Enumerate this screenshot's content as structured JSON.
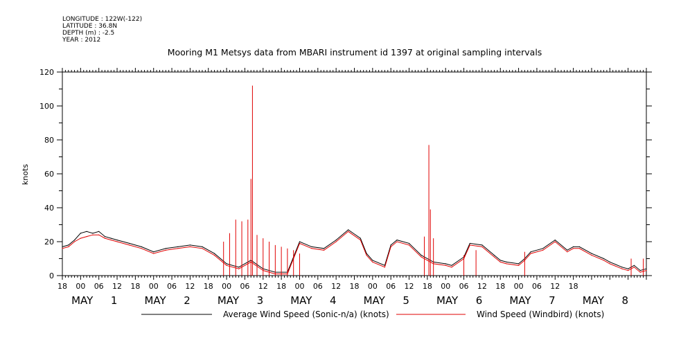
{
  "meta": {
    "longitude": "LONGITUDE : 122W(-122)",
    "latitude": "LATITUDE : 36.8N",
    "depth": "DEPTH (m) : -2.5",
    "year": "YEAR : 2012"
  },
  "colors": {
    "sonic": "#000000",
    "windbird": "#e00000",
    "axis": "#000000"
  },
  "chart_data": {
    "type": "line",
    "title": "Mooring M1 Metsys data from MBARI instrument id 1397 at original sampling intervals",
    "ylabel": "knots",
    "xlabel": "",
    "ylim": [
      0,
      120
    ],
    "xlim_hours": [
      18,
      210
    ],
    "yticks": [
      "0",
      "20",
      "40",
      "60",
      "80",
      "100",
      "120"
    ],
    "xticks": [
      "18",
      "00",
      "06",
      "12",
      "18",
      "00",
      "06",
      "12",
      "18",
      "00",
      "06",
      "12",
      "18",
      "00",
      "06",
      "12",
      "18",
      "00",
      "06",
      "12",
      "18",
      "00",
      "06",
      "12",
      "18",
      "00",
      "06",
      "12",
      "18"
    ],
    "day_labels": [
      {
        "month": "MAY",
        "day": "1"
      },
      {
        "month": "MAY",
        "day": "2"
      },
      {
        "month": "MAY",
        "day": "3"
      },
      {
        "month": "MAY",
        "day": "4"
      },
      {
        "month": "MAY",
        "day": "5"
      },
      {
        "month": "MAY",
        "day": "6"
      },
      {
        "month": "MAY",
        "day": "7"
      },
      {
        "month": "MAY",
        "day": "8"
      }
    ],
    "series": [
      {
        "name": "Average Wind Speed (Sonic-n/a) (knots)",
        "x_hours": [
          18,
          20,
          22,
          24,
          26,
          28,
          30,
          32,
          34,
          36,
          40,
          44,
          48,
          52,
          56,
          60,
          64,
          68,
          72,
          76,
          80,
          84,
          88,
          92,
          96,
          100,
          104,
          108,
          112,
          116,
          118,
          120,
          124,
          126,
          128,
          132,
          136,
          140,
          144,
          146,
          150,
          152,
          156,
          160,
          162,
          164,
          168,
          170,
          172,
          176,
          180,
          184,
          186,
          188,
          192,
          196,
          198,
          202,
          204,
          206,
          208,
          210
        ],
        "values": [
          17,
          18,
          21,
          25,
          26,
          25,
          26,
          23,
          22,
          21,
          19,
          17,
          14,
          16,
          17,
          18,
          17,
          13,
          7,
          5,
          9,
          4,
          2,
          2,
          20,
          17,
          16,
          21,
          27,
          22,
          13,
          9,
          6,
          18,
          21,
          19,
          12,
          8,
          7,
          6,
          11,
          19,
          18,
          12,
          9,
          8,
          7,
          10,
          14,
          16,
          21,
          15,
          17,
          17,
          13,
          10,
          8,
          5,
          4,
          6,
          3,
          4
        ]
      },
      {
        "name": "Wind Speed (Windbird) (knots)",
        "x_hours": [
          18,
          20,
          22,
          24,
          26,
          28,
          30,
          32,
          34,
          36,
          40,
          44,
          48,
          52,
          56,
          60,
          64,
          68,
          72,
          76,
          80,
          84,
          88,
          92,
          96,
          100,
          104,
          108,
          112,
          116,
          118,
          120,
          124,
          126,
          128,
          132,
          136,
          140,
          144,
          146,
          150,
          152,
          156,
          160,
          162,
          164,
          168,
          170,
          172,
          176,
          180,
          184,
          186,
          188,
          192,
          196,
          198,
          202,
          204,
          206,
          208,
          210
        ],
        "values": [
          16,
          17,
          20,
          22,
          23,
          24,
          24,
          22,
          21,
          20,
          18,
          16,
          13,
          15,
          16,
          17,
          16,
          12,
          6,
          4,
          8,
          3,
          1,
          1,
          19,
          16,
          15,
          20,
          26,
          21,
          12,
          8,
          5,
          17,
          20,
          18,
          11,
          7,
          6,
          5,
          10,
          18,
          17,
          11,
          8,
          7,
          6,
          9,
          13,
          15,
          20,
          14,
          16,
          16,
          12,
          9,
          7,
          4,
          3,
          5,
          2,
          3
        ],
        "spikes": [
          {
            "x": 71,
            "y": 20
          },
          {
            "x": 73,
            "y": 25
          },
          {
            "x": 75,
            "y": 33
          },
          {
            "x": 77,
            "y": 32
          },
          {
            "x": 79,
            "y": 33
          },
          {
            "x": 80,
            "y": 57
          },
          {
            "x": 80.5,
            "y": 112
          },
          {
            "x": 82,
            "y": 24
          },
          {
            "x": 84,
            "y": 22
          },
          {
            "x": 86,
            "y": 20
          },
          {
            "x": 88,
            "y": 18
          },
          {
            "x": 90,
            "y": 17
          },
          {
            "x": 92,
            "y": 16
          },
          {
            "x": 94,
            "y": 15
          },
          {
            "x": 96,
            "y": 13
          },
          {
            "x": 137,
            "y": 23
          },
          {
            "x": 138.5,
            "y": 77
          },
          {
            "x": 139,
            "y": 39
          },
          {
            "x": 140,
            "y": 22
          },
          {
            "x": 150,
            "y": 12
          },
          {
            "x": 154,
            "y": 15
          },
          {
            "x": 170,
            "y": 14
          },
          {
            "x": 205,
            "y": 10
          },
          {
            "x": 209,
            "y": 10
          }
        ]
      }
    ],
    "legend": {
      "placement": "bottom"
    }
  }
}
